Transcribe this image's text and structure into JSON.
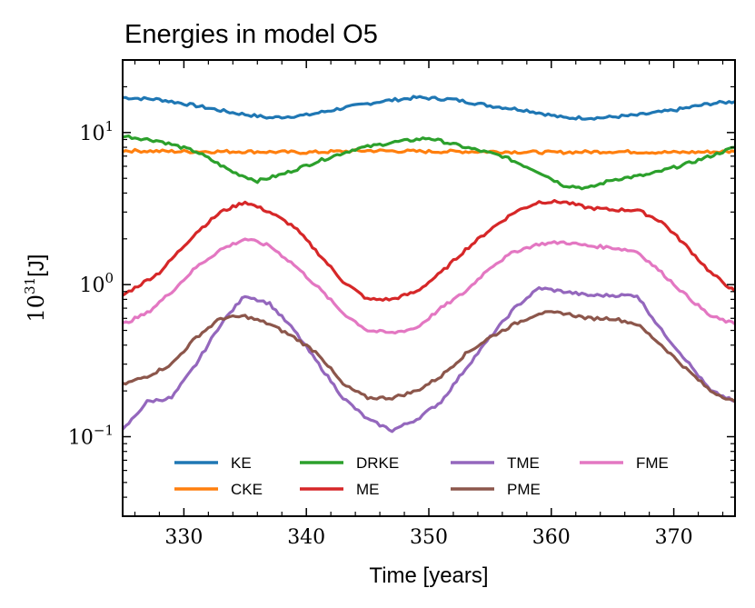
{
  "chart_data": {
    "type": "line",
    "title": "Energies in model O5",
    "xlabel": "Time [years]",
    "ylabel_base": "10",
    "ylabel_exp": "31",
    "ylabel_unit": "[J]",
    "yscale": "log",
    "xlim": [
      325,
      375
    ],
    "ylim": [
      0.03,
      30
    ],
    "xticks": [
      330,
      340,
      350,
      360,
      370
    ],
    "xtick_labels": [
      "330",
      "340",
      "350",
      "360",
      "370"
    ],
    "yticks": [
      {
        "value": 10,
        "base": "10",
        "exp": "1"
      },
      {
        "value": 1,
        "base": "10",
        "exp": "0"
      },
      {
        "value": 0.1,
        "base": "10",
        "exp": "−1"
      }
    ],
    "legend_position": "lower-center",
    "series": [
      {
        "name": "KE",
        "color": "#1f77b4",
        "x": [
          325,
          328,
          331,
          334,
          337,
          340,
          343,
          346,
          349,
          352,
          355,
          358,
          361,
          364,
          367,
          370,
          373,
          375
        ],
        "y": [
          17,
          16.5,
          15,
          13.5,
          12.5,
          13,
          14.5,
          16,
          17,
          16.5,
          15,
          14,
          12.5,
          12.5,
          13,
          14,
          15.5,
          16
        ]
      },
      {
        "name": "CKE",
        "color": "#ff7f0e",
        "x": [
          325,
          330,
          335,
          340,
          345,
          350,
          355,
          360,
          365,
          370,
          375
        ],
        "y": [
          7.6,
          7.5,
          7.5,
          7.4,
          7.6,
          7.5,
          7.5,
          7.4,
          7.5,
          7.4,
          7.5
        ]
      },
      {
        "name": "DRKE",
        "color": "#2ca02c",
        "x": [
          325,
          328,
          331,
          334,
          336,
          338,
          341,
          344,
          347,
          350,
          353,
          356,
          359,
          361,
          363,
          365,
          368,
          371,
          373,
          375
        ],
        "y": [
          9.5,
          8.8,
          7.5,
          5.5,
          4.8,
          5.3,
          6.5,
          7.8,
          8.6,
          9.2,
          8,
          7,
          5.5,
          4.5,
          4.3,
          4.9,
          5.3,
          6.2,
          7,
          8
        ]
      },
      {
        "name": "ME",
        "color": "#d62728",
        "x": [
          325,
          328,
          331,
          333,
          335,
          337,
          339,
          341,
          343,
          345,
          347,
          349,
          351,
          353,
          355,
          357,
          359,
          361,
          363,
          365,
          367,
          369,
          371,
          373,
          375
        ],
        "y": [
          0.85,
          1.2,
          2.2,
          3,
          3.5,
          3,
          2.4,
          1.6,
          1.05,
          0.8,
          0.8,
          0.9,
          1.2,
          1.7,
          2.3,
          3,
          3.5,
          3.5,
          3.2,
          3.1,
          3.1,
          2.6,
          1.8,
          1.2,
          0.9
        ]
      },
      {
        "name": "TME",
        "color": "#9467bd",
        "x": [
          325,
          327,
          329,
          331,
          333,
          335,
          337,
          339,
          341,
          343,
          345,
          347,
          349,
          351,
          353,
          355,
          357,
          359,
          361,
          363,
          365,
          367,
          369,
          371,
          373,
          375
        ],
        "y": [
          0.11,
          0.17,
          0.18,
          0.3,
          0.55,
          0.85,
          0.75,
          0.5,
          0.3,
          0.18,
          0.13,
          0.11,
          0.13,
          0.17,
          0.28,
          0.45,
          0.7,
          0.95,
          0.9,
          0.85,
          0.85,
          0.85,
          0.5,
          0.32,
          0.2,
          0.17
        ]
      },
      {
        "name": "PME",
        "color": "#8c564b",
        "x": [
          325,
          327,
          329,
          331,
          333,
          335,
          337,
          339,
          341,
          343,
          345,
          347,
          349,
          351,
          353,
          355,
          357,
          359,
          361,
          363,
          365,
          367,
          369,
          371,
          373,
          375
        ],
        "y": [
          0.22,
          0.25,
          0.3,
          0.45,
          0.6,
          0.62,
          0.55,
          0.45,
          0.35,
          0.22,
          0.18,
          0.18,
          0.2,
          0.25,
          0.35,
          0.45,
          0.55,
          0.65,
          0.65,
          0.6,
          0.6,
          0.55,
          0.4,
          0.28,
          0.2,
          0.17
        ]
      },
      {
        "name": "FME",
        "color": "#e377c2",
        "x": [
          325,
          327,
          329,
          331,
          333,
          335,
          337,
          339,
          341,
          343,
          345,
          347,
          349,
          351,
          353,
          355,
          357,
          359,
          361,
          363,
          365,
          367,
          369,
          371,
          373,
          375
        ],
        "y": [
          0.55,
          0.65,
          0.9,
          1.3,
          1.7,
          2,
          1.8,
          1.35,
          0.95,
          0.65,
          0.5,
          0.48,
          0.52,
          0.7,
          0.9,
          1.3,
          1.65,
          1.85,
          1.9,
          1.8,
          1.75,
          1.65,
          1.2,
          0.85,
          0.62,
          0.55
        ]
      }
    ],
    "legend_rows": [
      [
        "KE",
        "DRKE",
        "TME",
        "FME"
      ],
      [
        "CKE",
        "ME",
        "PME"
      ]
    ]
  }
}
